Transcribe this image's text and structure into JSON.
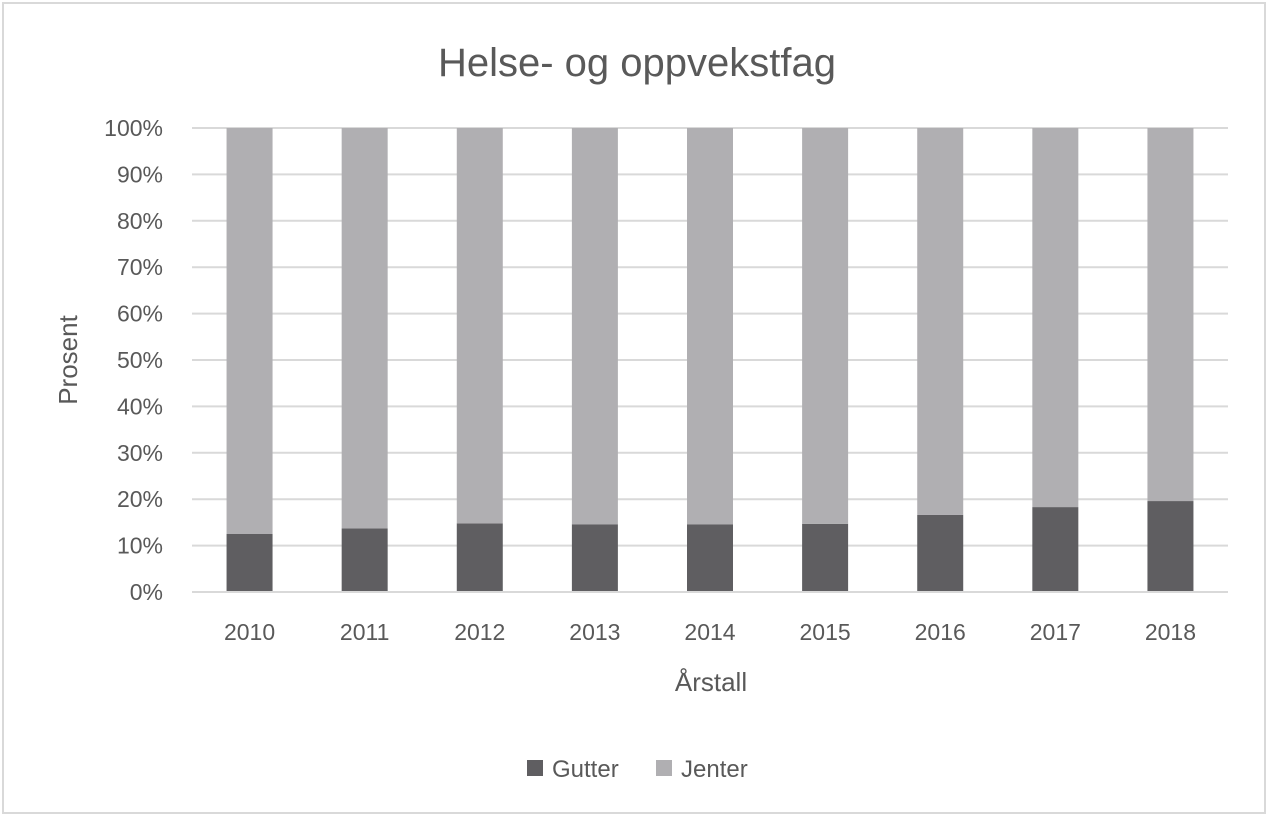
{
  "chart_data": {
    "type": "bar",
    "stacked": true,
    "title": "Helse- og oppvekstfag",
    "xlabel": "Årstall",
    "ylabel": "Prosent",
    "categories": [
      "2010",
      "2011",
      "2012",
      "2013",
      "2014",
      "2015",
      "2016",
      "2017",
      "2018"
    ],
    "y_ticks": [
      "0%",
      "10%",
      "20%",
      "30%",
      "40%",
      "50%",
      "60%",
      "70%",
      "80%",
      "90%",
      "100%"
    ],
    "ylim": [
      0,
      100
    ],
    "grid": true,
    "legend_position": "bottom",
    "series": [
      {
        "name": "Gutter",
        "color": "#5f5e61",
        "values": [
          12.5,
          13.7,
          14.8,
          14.6,
          14.6,
          14.7,
          16.6,
          18.3,
          19.6
        ]
      },
      {
        "name": "Jenter",
        "color": "#b0afb2",
        "values": [
          87.5,
          86.3,
          85.2,
          85.4,
          85.4,
          85.3,
          83.4,
          81.7,
          80.4
        ]
      }
    ]
  }
}
